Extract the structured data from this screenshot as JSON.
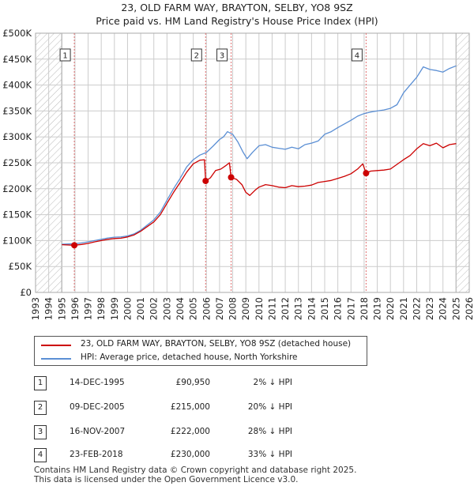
{
  "chart_data": {
    "type": "line",
    "title": "23, OLD FARM WAY, BRAYTON, SELBY, YO8 9SZ",
    "subtitle": "Price paid vs. HM Land Registry's House Price Index (HPI)",
    "xlim": [
      1993,
      2026
    ],
    "ylim": [
      0,
      500000
    ],
    "x_ticks": [
      "1993",
      "1994",
      "1995",
      "1996",
      "1997",
      "1998",
      "1999",
      "2000",
      "2001",
      "2002",
      "2003",
      "2004",
      "2005",
      "2006",
      "2007",
      "2008",
      "2009",
      "2010",
      "2011",
      "2012",
      "2013",
      "2014",
      "2015",
      "2016",
      "2017",
      "2018",
      "2019",
      "2020",
      "2021",
      "2022",
      "2023",
      "2024",
      "2025",
      "2026"
    ],
    "y_ticks": [
      {
        "value": 0,
        "label": "£0"
      },
      {
        "value": 50000,
        "label": "£50K"
      },
      {
        "value": 100000,
        "label": "£100K"
      },
      {
        "value": 150000,
        "label": "£150K"
      },
      {
        "value": 200000,
        "label": "£200K"
      },
      {
        "value": 250000,
        "label": "£250K"
      },
      {
        "value": 300000,
        "label": "£300K"
      },
      {
        "value": 350000,
        "label": "£350K"
      },
      {
        "value": 400000,
        "label": "£400K"
      },
      {
        "value": 450000,
        "label": "£450K"
      },
      {
        "value": 500000,
        "label": "£500K"
      }
    ],
    "hatched_before": 1995.0,
    "hatched_after": 2025.0,
    "series": [
      {
        "name": "23, OLD FARM WAY, BRAYTON, SELBY, YO8 9SZ (detached house)",
        "color": "#cc0000",
        "points": [
          [
            1995.0,
            92000
          ],
          [
            1995.5,
            91500
          ],
          [
            1995.95,
            90950
          ],
          [
            1996.5,
            92500
          ],
          [
            1997.0,
            94500
          ],
          [
            1997.5,
            97500
          ],
          [
            1998.0,
            100000
          ],
          [
            1998.5,
            102500
          ],
          [
            1999.0,
            104000
          ],
          [
            1999.5,
            104500
          ],
          [
            2000.0,
            107000
          ],
          [
            2000.5,
            111000
          ],
          [
            2001.0,
            118000
          ],
          [
            2001.5,
            127000
          ],
          [
            2002.0,
            136000
          ],
          [
            2002.5,
            150000
          ],
          [
            2003.0,
            172000
          ],
          [
            2003.5,
            193000
          ],
          [
            2004.0,
            212000
          ],
          [
            2004.5,
            232000
          ],
          [
            2005.0,
            248000
          ],
          [
            2005.5,
            255000
          ],
          [
            2005.85,
            256000
          ],
          [
            2005.94,
            215000
          ],
          [
            2006.3,
            221000
          ],
          [
            2006.7,
            235000
          ],
          [
            2007.1,
            238000
          ],
          [
            2007.5,
            245000
          ],
          [
            2007.75,
            250000
          ],
          [
            2007.88,
            222000
          ],
          [
            2008.3,
            218000
          ],
          [
            2008.7,
            208000
          ],
          [
            2009.0,
            193000
          ],
          [
            2009.3,
            187000
          ],
          [
            2009.7,
            197000
          ],
          [
            2010.0,
            203000
          ],
          [
            2010.5,
            208000
          ],
          [
            2011.0,
            206000
          ],
          [
            2011.5,
            203000
          ],
          [
            2012.0,
            202000
          ],
          [
            2012.5,
            206000
          ],
          [
            2013.0,
            204000
          ],
          [
            2013.5,
            205000
          ],
          [
            2014.0,
            207000
          ],
          [
            2014.5,
            212000
          ],
          [
            2015.0,
            214000
          ],
          [
            2015.5,
            216000
          ],
          [
            2016.0,
            220000
          ],
          [
            2016.5,
            224000
          ],
          [
            2017.0,
            229000
          ],
          [
            2017.5,
            238000
          ],
          [
            2017.9,
            248000
          ],
          [
            2018.15,
            230000
          ],
          [
            2018.5,
            234000
          ],
          [
            2019.0,
            235000
          ],
          [
            2019.5,
            236000
          ],
          [
            2020.0,
            238000
          ],
          [
            2020.5,
            247000
          ],
          [
            2021.0,
            256000
          ],
          [
            2021.5,
            264000
          ],
          [
            2022.0,
            277000
          ],
          [
            2022.5,
            287000
          ],
          [
            2023.0,
            283000
          ],
          [
            2023.5,
            288000
          ],
          [
            2024.0,
            279000
          ],
          [
            2024.5,
            285000
          ],
          [
            2025.0,
            287000
          ]
        ]
      },
      {
        "name": "HPI: Average price, detached house, North Yorkshire",
        "color": "#5b8fd4",
        "points": [
          [
            1995.0,
            93000
          ],
          [
            1995.5,
            93500
          ],
          [
            1996.0,
            94000
          ],
          [
            1996.5,
            95500
          ],
          [
            1997.0,
            97500
          ],
          [
            1997.5,
            100000
          ],
          [
            1998.0,
            102500
          ],
          [
            1998.5,
            105000
          ],
          [
            1999.0,
            106500
          ],
          [
            1999.5,
            107000
          ],
          [
            2000.0,
            109000
          ],
          [
            2000.5,
            113000
          ],
          [
            2001.0,
            120000
          ],
          [
            2001.5,
            130000
          ],
          [
            2002.0,
            140000
          ],
          [
            2002.5,
            155000
          ],
          [
            2003.0,
            178000
          ],
          [
            2003.5,
            200000
          ],
          [
            2004.0,
            220000
          ],
          [
            2004.5,
            242000
          ],
          [
            2005.0,
            256000
          ],
          [
            2005.5,
            265000
          ],
          [
            2006.0,
            270000
          ],
          [
            2006.5,
            282000
          ],
          [
            2007.0,
            295000
          ],
          [
            2007.3,
            300000
          ],
          [
            2007.6,
            310000
          ],
          [
            2008.0,
            305000
          ],
          [
            2008.4,
            290000
          ],
          [
            2008.8,
            270000
          ],
          [
            2009.1,
            258000
          ],
          [
            2009.5,
            270000
          ],
          [
            2010.0,
            283000
          ],
          [
            2010.5,
            285000
          ],
          [
            2011.0,
            280000
          ],
          [
            2011.5,
            278000
          ],
          [
            2012.0,
            276000
          ],
          [
            2012.5,
            280000
          ],
          [
            2013.0,
            277000
          ],
          [
            2013.5,
            285000
          ],
          [
            2014.0,
            288000
          ],
          [
            2014.5,
            292000
          ],
          [
            2015.0,
            305000
          ],
          [
            2015.5,
            310000
          ],
          [
            2016.0,
            318000
          ],
          [
            2016.5,
            325000
          ],
          [
            2017.0,
            332000
          ],
          [
            2017.5,
            340000
          ],
          [
            2018.0,
            345000
          ],
          [
            2018.5,
            348000
          ],
          [
            2019.0,
            350000
          ],
          [
            2019.5,
            352000
          ],
          [
            2020.0,
            355000
          ],
          [
            2020.5,
            362000
          ],
          [
            2021.0,
            385000
          ],
          [
            2021.5,
            400000
          ],
          [
            2022.0,
            415000
          ],
          [
            2022.5,
            435000
          ],
          [
            2023.0,
            430000
          ],
          [
            2023.5,
            428000
          ],
          [
            2024.0,
            425000
          ],
          [
            2024.5,
            432000
          ],
          [
            2025.0,
            437000
          ]
        ]
      }
    ],
    "sales": [
      {
        "id": "1",
        "x": 1995.95,
        "y": 90950,
        "date": "14-DEC-1995",
        "price": "£90,950",
        "pct": "2% ↓ HPI"
      },
      {
        "id": "2",
        "x": 2005.94,
        "y": 215000,
        "date": "09-DEC-2005",
        "price": "£215,000",
        "pct": "20% ↓ HPI"
      },
      {
        "id": "3",
        "x": 2007.88,
        "y": 222000,
        "date": "16-NOV-2007",
        "price": "£222,000",
        "pct": "28% ↓ HPI"
      },
      {
        "id": "4",
        "x": 2018.15,
        "y": 230000,
        "date": "23-FEB-2018",
        "price": "£230,000",
        "pct": "33% ↓ HPI"
      }
    ]
  },
  "legend": {
    "property_label": "23, OLD FARM WAY, BRAYTON, SELBY, YO8 9SZ (detached house)",
    "hpi_label": "HPI: Average price, detached house, North Yorkshire"
  },
  "table": [
    {
      "num": "1",
      "date": "14-DEC-1995",
      "price": "£90,950",
      "pct": "2% ↓ HPI"
    },
    {
      "num": "2",
      "date": "09-DEC-2005",
      "price": "£215,000",
      "pct": "20% ↓ HPI"
    },
    {
      "num": "3",
      "date": "16-NOV-2007",
      "price": "£222,000",
      "pct": "28% ↓ HPI"
    },
    {
      "num": "4",
      "date": "23-FEB-2018",
      "price": "£230,000",
      "pct": "33% ↓ HPI"
    }
  ],
  "footer": {
    "line1": "Contains HM Land Registry data © Crown copyright and database right 2025.",
    "line2": "This data is licensed under the Open Government Licence v3.0."
  },
  "colors": {
    "property": "#cc0000",
    "hpi": "#5b8fd4",
    "grid": "#cccccc",
    "hatch": "#bbbbbb"
  }
}
